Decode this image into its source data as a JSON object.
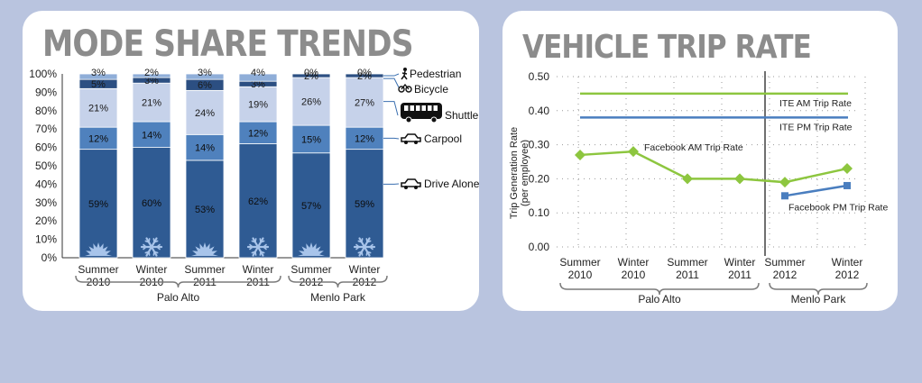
{
  "colors": {
    "drive_alone": "#2f5b93",
    "carpool": "#4f81bd",
    "shuttle": "#c6d2ea",
    "bicycle": "#2c4f82",
    "pedestrian": "#8faed8",
    "am_line": "#8dc63f",
    "pm_line": "#4a7ebf",
    "snow": "#a8c4ea"
  },
  "icons": [
    "pedestrian-icon",
    "bicycle-icon",
    "shuttle-bus-icon",
    "carpool-car-icon",
    "drive-alone-car-icon",
    "snowflake-icon"
  ],
  "left_panel": {
    "title": "MODE SHARE TRENDS"
  },
  "right_panel": {
    "title": "VEHICLE TRIP RATE"
  },
  "chart_data": [
    {
      "type": "bar",
      "stacked": true,
      "title": "MODE SHARE TRENDS",
      "categories": [
        [
          "Summer",
          "2010"
        ],
        [
          "Winter",
          "2010"
        ],
        [
          "Summer",
          "2011"
        ],
        [
          "Winter",
          "2011"
        ],
        [
          "Summer",
          "2012"
        ],
        [
          "Winter",
          "2012"
        ]
      ],
      "groups": [
        {
          "label": "Palo Alto",
          "span": [
            0,
            3
          ]
        },
        {
          "label": "Menlo Park",
          "span": [
            4,
            5
          ]
        }
      ],
      "ylim": [
        0,
        100
      ],
      "yticks": [
        "0%",
        "10%",
        "20%",
        "30%",
        "40%",
        "50%",
        "60%",
        "70%",
        "80%",
        "90%",
        "100%"
      ],
      "series": [
        {
          "name": "Drive Alone",
          "values": [
            59,
            60,
            53,
            62,
            57,
            59
          ],
          "labels": [
            "59%",
            "60%",
            "53%",
            "62%",
            "57%",
            "59%"
          ]
        },
        {
          "name": "Carpool",
          "values": [
            12,
            14,
            14,
            12,
            15,
            12
          ],
          "labels": [
            "12%",
            "14%",
            "14%",
            "12%",
            "15%",
            "12%"
          ]
        },
        {
          "name": "Shuttle",
          "values": [
            21,
            21,
            24,
            19,
            26,
            27
          ],
          "labels": [
            "21%",
            "21%",
            "24%",
            "19%",
            "26%",
            "27%"
          ]
        },
        {
          "name": "Bicycle",
          "values": [
            5,
            3,
            6,
            3,
            2,
            2
          ],
          "labels": [
            "5%",
            "3%",
            "6%",
            "3%",
            "2%",
            "2%"
          ]
        },
        {
          "name": "Pedestrian",
          "values": [
            3,
            2,
            3,
            4,
            0,
            0
          ],
          "labels": [
            "3%",
            "2%",
            "3%",
            "4%",
            "0%",
            "0%"
          ]
        }
      ],
      "legend": [
        "Pedestrian",
        "Bicycle",
        "Shuttle",
        "Carpool",
        "Drive Alone"
      ],
      "legend_position": "right",
      "grid": false
    },
    {
      "type": "line",
      "title": "VEHICLE TRIP RATE",
      "ylabel": [
        "Trip Generation Rate",
        "(per employee)"
      ],
      "categories": [
        [
          "Summer",
          "2010"
        ],
        [
          "Winter",
          "2010"
        ],
        [
          "Summer",
          "2011"
        ],
        [
          "Winter",
          "2011"
        ],
        [
          "Summer",
          "2012"
        ],
        [
          "Winter",
          "2012"
        ]
      ],
      "groups": [
        {
          "label": "Palo Alto",
          "span": [
            0,
            3
          ]
        },
        {
          "label": "Menlo Park",
          "span": [
            4,
            5
          ]
        }
      ],
      "ylim": [
        0,
        0.5
      ],
      "yticks": [
        "0.00",
        "0.10",
        "0.20",
        "0.30",
        "0.40",
        "0.50"
      ],
      "series": [
        {
          "name": "Facebook AM Trip Rate",
          "values": [
            0.27,
            0.28,
            0.2,
            0.2,
            0.19,
            0.23
          ],
          "marker": "diamond"
        },
        {
          "name": "Facebook PM Trip Rate",
          "values": [
            null,
            null,
            null,
            null,
            0.15,
            0.18
          ],
          "marker": "square"
        }
      ],
      "reference_lines": [
        {
          "name": "ITE AM Trip Rate",
          "value": 0.45
        },
        {
          "name": "ITE PM Trip Rate",
          "value": 0.38
        }
      ],
      "grid": "dotted",
      "divider_between": [
        3,
        4
      ]
    }
  ]
}
